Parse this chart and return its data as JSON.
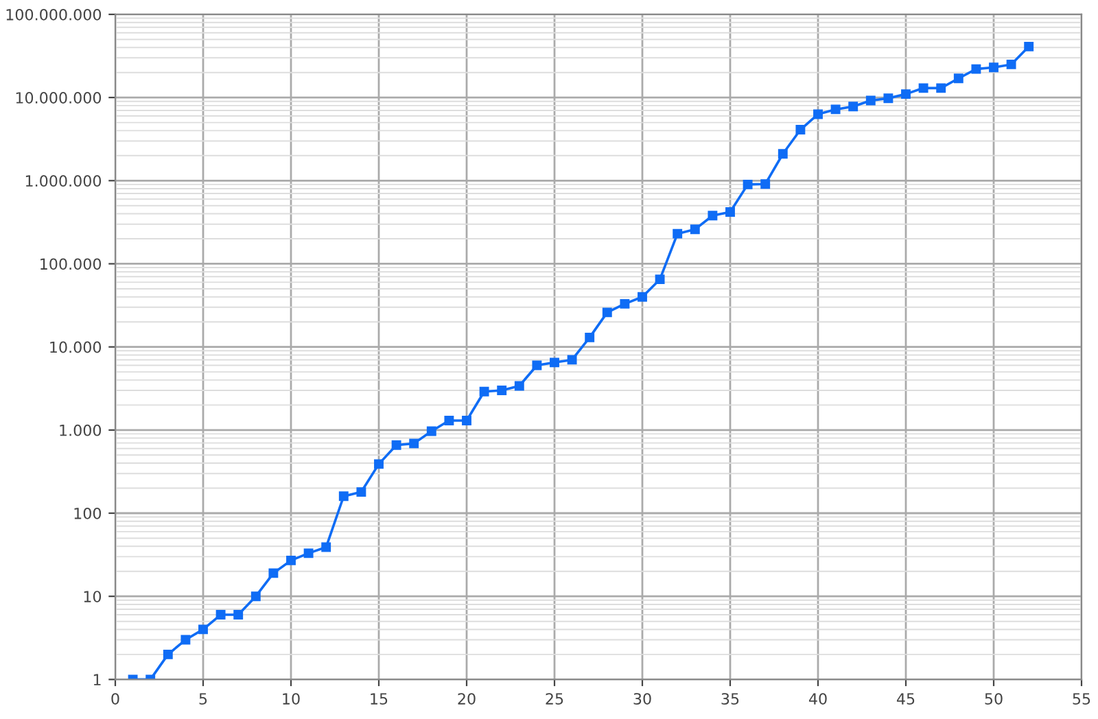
{
  "chart_data": {
    "type": "line",
    "x": [
      1,
      2,
      3,
      4,
      5,
      6,
      7,
      8,
      9,
      10,
      11,
      12,
      13,
      14,
      15,
      16,
      17,
      18,
      19,
      20,
      21,
      22,
      23,
      24,
      25,
      26,
      27,
      28,
      29,
      30,
      31,
      32,
      33,
      34,
      35,
      36,
      37,
      38,
      39,
      40,
      41,
      42,
      43,
      44,
      45,
      46,
      47,
      48,
      49,
      50,
      51,
      52
    ],
    "series": [
      {
        "color": "#0f6cf5",
        "values": [
          1,
          1,
          2,
          3,
          4,
          6,
          6,
          10,
          19,
          27,
          33,
          39,
          160,
          180,
          390,
          660,
          690,
          970,
          1300,
          1300,
          2900,
          3000,
          3400,
          6000,
          6500,
          7000,
          13000,
          26000,
          33000,
          40000,
          65000,
          230000,
          260000,
          380000,
          420000,
          900000,
          910000,
          2100000,
          4100000,
          6300000,
          7200000,
          7800000,
          9200000,
          9800000,
          11000000,
          13000000,
          13000000,
          17000000,
          22000000,
          23000000,
          25000000,
          41000000
        ]
      }
    ],
    "xlim": [
      0,
      55
    ],
    "xticks": [
      0,
      5,
      10,
      15,
      20,
      25,
      30,
      35,
      40,
      45,
      50,
      55
    ],
    "ylim": [
      1,
      100000000
    ],
    "yticks": [
      1,
      10,
      100,
      {
        "value": 1000,
        "label": "1.000"
      },
      {
        "value": 10000,
        "label": "10.000"
      },
      {
        "value": 100000,
        "label": "100.000"
      },
      {
        "value": 1000000,
        "label": "1.000.000"
      },
      {
        "value": 10000000,
        "label": "10.000.000"
      },
      {
        "value": 100000000,
        "label": "100.000.000"
      }
    ],
    "log": "y",
    "grid": true,
    "marker": "square",
    "line_style": "solid"
  }
}
